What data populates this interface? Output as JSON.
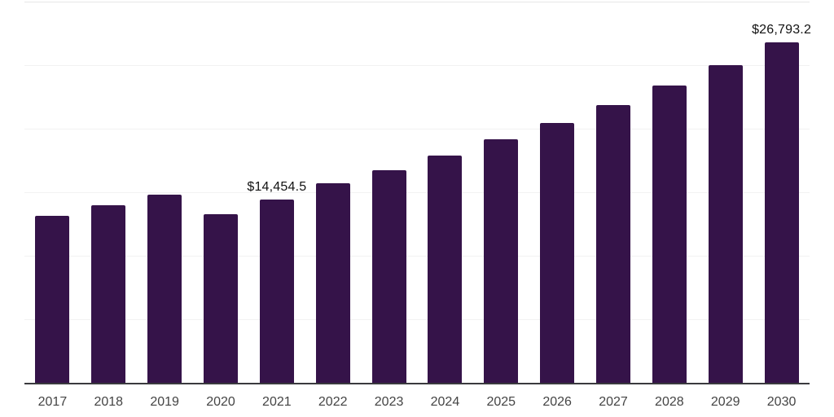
{
  "colors": {
    "background": "#ffffff",
    "bar": "#351349",
    "gridline": "#f2f2f2",
    "gridline_top": "#e6e6e6",
    "axis": "#3a3a3e",
    "x_tick_label": "#444444",
    "data_label": "#121212"
  },
  "chart_data": {
    "type": "bar",
    "title": "",
    "xlabel": "",
    "ylabel": "",
    "categories": [
      "2017",
      "2018",
      "2019",
      "2020",
      "2021",
      "2022",
      "2023",
      "2024",
      "2025",
      "2026",
      "2027",
      "2028",
      "2029",
      "2030"
    ],
    "values": [
      13130,
      13980,
      14830,
      13260,
      14454.5,
      15710,
      16750,
      17880,
      19160,
      20440,
      21830,
      23370,
      25030,
      26793.2
    ],
    "data_labels": [
      "",
      "",
      "",
      "",
      "$14,454.5",
      "",
      "",
      "",
      "",
      "",
      "",
      "",
      "",
      "$26,793.2"
    ],
    "ylim": [
      0,
      30000
    ],
    "gridline_interval": 5000,
    "grid": "horizontal",
    "legend_position": "none",
    "y_axis_tick_labels": "hidden"
  }
}
